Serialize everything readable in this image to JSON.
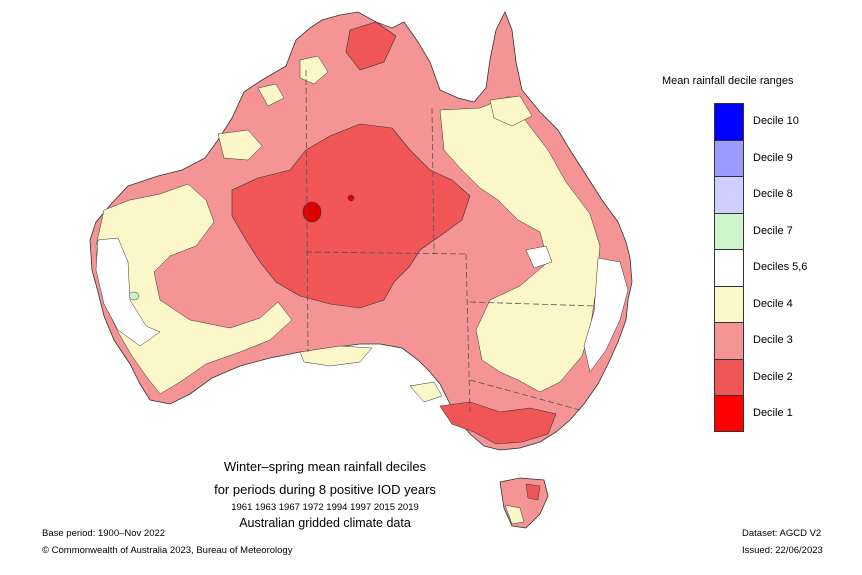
{
  "map": {
    "caption_title": "Winter–spring mean rainfall deciles",
    "caption_subtitle": "for periods during 8 positive IOD years",
    "caption_years": "1961 1963 1967 1972 1994 1997 2015 2019",
    "caption_dataset": "Australian gridded climate data"
  },
  "legend": {
    "title": "Mean rainfall decile ranges",
    "items": [
      {
        "label": "Decile 10",
        "color": "#0000ff"
      },
      {
        "label": "Decile 9",
        "color": "#9a9aff"
      },
      {
        "label": "Decile 8",
        "color": "#cfcfff"
      },
      {
        "label": "Decile 7",
        "color": "#ccf5cc"
      },
      {
        "label": "Deciles 5,6",
        "color": "#ffffff"
      },
      {
        "label": "Decile 4",
        "color": "#fbf7c8"
      },
      {
        "label": "Decile 3",
        "color": "#f59494"
      },
      {
        "label": "Decile 2",
        "color": "#f05656"
      },
      {
        "label": "Decile 1",
        "color": "#ff0000"
      }
    ]
  },
  "footer": {
    "base_period": "Base period: 1900–Nov 2022",
    "copyright": "© Commonwealth of Australia 2023, Bureau of Meteorology",
    "dataset": "Dataset: AGCD V2",
    "issued": "Issued: 22/06/2023"
  }
}
